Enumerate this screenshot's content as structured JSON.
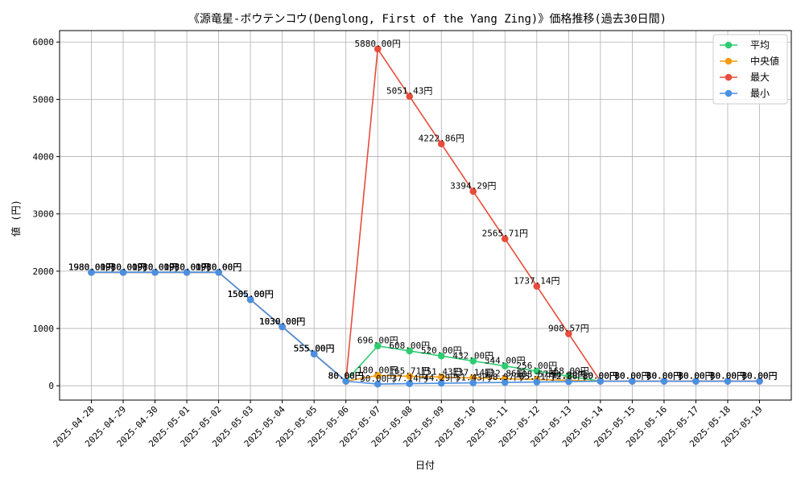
{
  "chart_data": {
    "type": "line",
    "title": "《源竜星-ボウテンコウ(Denglong, First of the Yang Zing)》価格推移(過去30日間)",
    "xlabel": "日付",
    "ylabel": "値 (円)",
    "ylim": [
      -250,
      6200
    ],
    "yticks": [
      0,
      1000,
      2000,
      3000,
      4000,
      5000,
      6000
    ],
    "grid": true,
    "legend_position": "top-right",
    "label_suffix": "円",
    "categories": [
      "2025-04-28",
      "2025-04-29",
      "2025-04-30",
      "2025-05-01",
      "2025-05-02",
      "2025-05-03",
      "2025-05-04",
      "2025-05-05",
      "2025-05-06",
      "2025-05-07",
      "2025-05-08",
      "2025-05-09",
      "2025-05-10",
      "2025-05-11",
      "2025-05-12",
      "2025-05-13",
      "2025-05-14",
      "2025-05-15",
      "2025-05-16",
      "2025-05-17",
      "2025-05-18",
      "2025-05-19"
    ],
    "series": [
      {
        "name": "平均",
        "color": "#2ecc71",
        "values": [
          1980,
          1980,
          1980,
          1980,
          1980,
          1505,
          1030,
          555,
          80,
          696,
          608,
          520,
          432,
          344,
          256,
          168,
          80,
          80,
          80,
          80,
          80,
          80
        ],
        "labels": [
          "1980.00",
          "1980.00",
          "1980.00",
          "1980.00",
          "1980.00",
          "1505.00",
          "1030.00",
          "555.00",
          "80.00",
          "696.00",
          "608.00",
          "520.00",
          "432.00",
          "344.00",
          "256.00",
          "168.00",
          "80.00",
          "80.00",
          "80.00",
          "80.00",
          "80.00",
          "80.00"
        ]
      },
      {
        "name": "中央値",
        "color": "#f39c12",
        "values": [
          1980,
          1980,
          1980,
          1980,
          1980,
          1505,
          1030,
          555,
          80,
          180,
          165.71,
          151.43,
          137.14,
          122.86,
          108.57,
          94.29,
          80,
          80,
          80,
          80,
          80,
          80
        ],
        "labels": [
          "1980.00",
          "1980.00",
          "1980.00",
          "1980.00",
          "1980.00",
          "1505.00",
          "1030.00",
          "555.00",
          "80.00",
          "180.00",
          "165.71",
          "151.43",
          "137.14",
          "122.86",
          "108.57",
          "94.29",
          "80.00",
          "80.00",
          "80.00",
          "80.00",
          "80.00",
          "80.00"
        ]
      },
      {
        "name": "最大",
        "color": "#e74c3c",
        "values": [
          1980,
          1980,
          1980,
          1980,
          1980,
          1505,
          1030,
          555,
          80,
          5880,
          5051.43,
          4222.86,
          3394.29,
          2565.71,
          1737.14,
          908.57,
          80,
          80,
          80,
          80,
          80,
          80
        ],
        "labels": [
          "1980.00",
          "1980.00",
          "1980.00",
          "1980.00",
          "1980.00",
          "1505.00",
          "1030.00",
          "555.00",
          "80.00",
          "5880.00",
          "5051.43",
          "4222.86",
          "3394.29",
          "2565.71",
          "1737.14",
          "908.57",
          "80.00",
          "80.00",
          "80.00",
          "80.00",
          "80.00",
          "80.00"
        ]
      },
      {
        "name": "最小",
        "color": "#4a90e2",
        "values": [
          1980,
          1980,
          1980,
          1980,
          1980,
          1505,
          1030,
          555,
          80,
          30,
          37.14,
          44.29,
          51.43,
          58.57,
          65.71,
          72.86,
          80,
          80,
          80,
          80,
          80,
          80
        ],
        "labels": [
          "1980.00",
          "1980.00",
          "1980.00",
          "1980.00",
          "1980.00",
          "1505.00",
          "1030.00",
          "555.00",
          "80.00",
          "30.00",
          "37.14",
          "44.29",
          "51.43",
          "58.57",
          "65.71",
          "72.86",
          "80.00",
          "80.00",
          "80.00",
          "80.00",
          "80.00",
          "80.00"
        ]
      }
    ]
  }
}
